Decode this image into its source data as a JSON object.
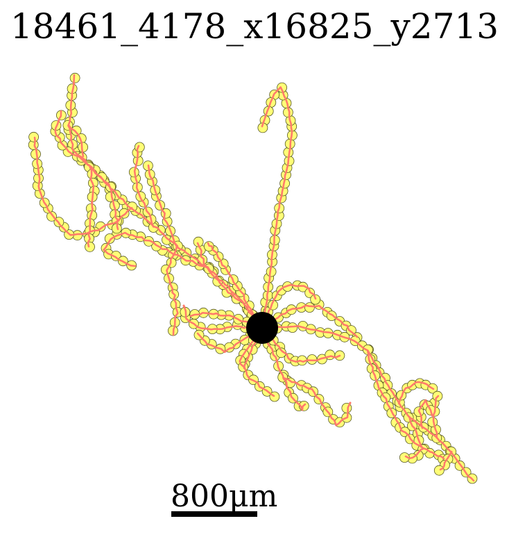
{
  "title": "18461_4178_x16825_y2713",
  "scale_bar": {
    "label": "800μm"
  },
  "colors": {
    "node_fill": "#ffff77",
    "node_stroke": "#555522",
    "edge": "#ff7b6b",
    "soma": "#000000",
    "background": "#ffffff"
  }
}
